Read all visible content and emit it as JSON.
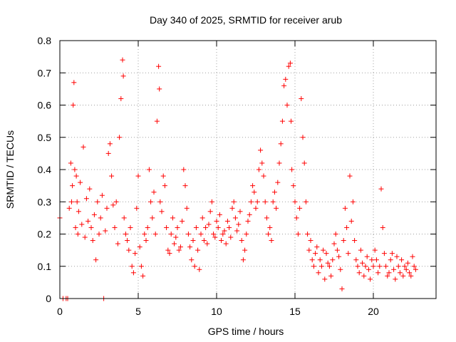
{
  "chart_data": {
    "type": "scatter",
    "title": "Day 340 of 2025, SRMTID for receiver arub",
    "xlabel": "GPS time / hours",
    "ylabel": "SRMTID / TECUs",
    "xlim": [
      0,
      24
    ],
    "ylim": [
      0,
      0.8
    ],
    "xticks": [
      0,
      5,
      10,
      15,
      20
    ],
    "yticks": [
      0,
      0.1,
      0.2,
      0.3,
      0.4,
      0.5,
      0.6,
      0.7,
      0.8
    ],
    "xtick_labels": [
      "0",
      "5",
      "10",
      "15",
      "20"
    ],
    "ytick_labels": [
      "0",
      "0.1",
      "0.2",
      "0.3",
      "0.4",
      "0.5",
      "0.6",
      "0.7",
      "0.8"
    ],
    "grid": true,
    "marker": "+",
    "marker_color": "#ff0000",
    "series": [
      {
        "name": "SRMTID",
        "x": [
          0.0,
          0.2,
          0.4,
          0.5,
          0.6,
          0.7,
          0.75,
          0.8,
          0.85,
          0.9,
          0.95,
          1.0,
          1.05,
          1.1,
          1.15,
          1.2,
          1.3,
          1.4,
          1.5,
          1.6,
          1.7,
          1.8,
          1.9,
          2.0,
          2.1,
          2.2,
          2.3,
          2.4,
          2.5,
          2.6,
          2.7,
          2.8,
          2.9,
          3.0,
          3.1,
          3.2,
          3.3,
          3.4,
          3.5,
          3.6,
          3.7,
          3.8,
          3.9,
          4.0,
          4.05,
          4.1,
          4.2,
          4.3,
          4.4,
          4.5,
          4.6,
          4.7,
          4.8,
          4.9,
          5.0,
          5.1,
          5.2,
          5.3,
          5.4,
          5.5,
          5.6,
          5.7,
          5.8,
          5.9,
          6.0,
          6.1,
          6.2,
          6.3,
          6.35,
          6.4,
          6.5,
          6.6,
          6.7,
          6.8,
          6.9,
          7.0,
          7.1,
          7.2,
          7.3,
          7.4,
          7.5,
          7.6,
          7.7,
          7.8,
          7.9,
          8.0,
          8.1,
          8.2,
          8.3,
          8.4,
          8.5,
          8.6,
          8.7,
          8.8,
          8.9,
          9.0,
          9.1,
          9.2,
          9.3,
          9.4,
          9.5,
          9.6,
          9.7,
          9.8,
          9.9,
          10.0,
          10.1,
          10.2,
          10.3,
          10.4,
          10.5,
          10.6,
          10.7,
          10.8,
          10.9,
          11.0,
          11.1,
          11.2,
          11.3,
          11.4,
          11.5,
          11.6,
          11.7,
          11.8,
          11.9,
          12.0,
          12.1,
          12.2,
          12.3,
          12.4,
          12.5,
          12.6,
          12.7,
          12.8,
          12.9,
          13.0,
          13.1,
          13.2,
          13.3,
          13.4,
          13.5,
          13.6,
          13.7,
          13.8,
          13.9,
          14.0,
          14.1,
          14.2,
          14.3,
          14.4,
          14.5,
          14.6,
          14.7,
          14.75,
          14.8,
          14.9,
          15.0,
          15.1,
          15.2,
          15.3,
          15.4,
          15.5,
          15.6,
          15.7,
          15.8,
          15.9,
          16.0,
          16.1,
          16.2,
          16.3,
          16.4,
          16.5,
          16.6,
          16.7,
          16.8,
          16.9,
          17.0,
          17.1,
          17.2,
          17.3,
          17.4,
          17.5,
          17.6,
          17.7,
          17.8,
          17.9,
          18.0,
          18.1,
          18.2,
          18.3,
          18.4,
          18.5,
          18.6,
          18.7,
          18.8,
          18.9,
          19.0,
          19.1,
          19.2,
          19.3,
          19.4,
          19.5,
          19.6,
          19.7,
          19.8,
          19.9,
          20.0,
          20.1,
          20.2,
          20.3,
          20.4,
          20.5,
          20.6,
          20.7,
          20.8,
          20.9,
          21.0,
          21.1,
          21.2,
          21.3,
          21.4,
          21.5,
          21.6,
          21.7,
          21.8,
          21.9,
          22.0,
          22.1,
          22.2,
          22.3,
          22.4,
          22.5,
          22.6,
          22.7
        ],
        "y": [
          0.25,
          0.0,
          0.0,
          0.0,
          0.28,
          0.42,
          0.3,
          0.35,
          0.6,
          0.67,
          0.4,
          0.22,
          0.38,
          0.3,
          0.2,
          0.27,
          0.36,
          0.23,
          0.47,
          0.19,
          0.31,
          0.24,
          0.34,
          0.22,
          0.18,
          0.26,
          0.12,
          0.3,
          0.2,
          0.25,
          0.32,
          0.0,
          0.21,
          0.28,
          0.45,
          0.48,
          0.38,
          0.29,
          0.22,
          0.3,
          0.17,
          0.5,
          0.62,
          0.74,
          0.69,
          0.25,
          0.2,
          0.18,
          0.15,
          0.22,
          0.1,
          0.08,
          0.14,
          0.28,
          0.38,
          0.16,
          0.1,
          0.07,
          0.2,
          0.18,
          0.22,
          0.4,
          0.3,
          0.25,
          0.33,
          0.2,
          0.55,
          0.72,
          0.65,
          0.3,
          0.27,
          0.38,
          0.35,
          0.22,
          0.15,
          0.14,
          0.2,
          0.25,
          0.17,
          0.19,
          0.22,
          0.15,
          0.16,
          0.24,
          0.4,
          0.35,
          0.28,
          0.2,
          0.16,
          0.12,
          0.18,
          0.1,
          0.22,
          0.15,
          0.09,
          0.2,
          0.25,
          0.18,
          0.22,
          0.17,
          0.23,
          0.27,
          0.3,
          0.2,
          0.19,
          0.24,
          0.22,
          0.26,
          0.18,
          0.2,
          0.21,
          0.17,
          0.24,
          0.22,
          0.19,
          0.28,
          0.3,
          0.25,
          0.21,
          0.23,
          0.27,
          0.18,
          0.12,
          0.15,
          0.2,
          0.24,
          0.26,
          0.3,
          0.35,
          0.33,
          0.28,
          0.3,
          0.4,
          0.46,
          0.42,
          0.38,
          0.3,
          0.25,
          0.2,
          0.22,
          0.18,
          0.3,
          0.33,
          0.28,
          0.36,
          0.42,
          0.48,
          0.55,
          0.66,
          0.68,
          0.6,
          0.72,
          0.73,
          0.55,
          0.4,
          0.35,
          0.3,
          0.25,
          0.2,
          0.28,
          0.62,
          0.5,
          0.42,
          0.3,
          0.2,
          0.15,
          0.18,
          0.12,
          0.1,
          0.14,
          0.16,
          0.08,
          0.12,
          0.1,
          0.15,
          0.06,
          0.14,
          0.11,
          0.1,
          0.07,
          0.12,
          0.17,
          0.2,
          0.15,
          0.13,
          0.09,
          0.03,
          0.18,
          0.28,
          0.22,
          0.14,
          0.38,
          0.24,
          0.3,
          0.18,
          0.12,
          0.1,
          0.08,
          0.15,
          0.11,
          0.07,
          0.1,
          0.13,
          0.09,
          0.06,
          0.12,
          0.1,
          0.15,
          0.12,
          0.08,
          0.1,
          0.34,
          0.22,
          0.14,
          0.1,
          0.07,
          0.08,
          0.12,
          0.14,
          0.09,
          0.06,
          0.13,
          0.1,
          0.08,
          0.12,
          0.07,
          0.1,
          0.09,
          0.11,
          0.08,
          0.07,
          0.13,
          0.1,
          0.09
        ]
      }
    ]
  }
}
